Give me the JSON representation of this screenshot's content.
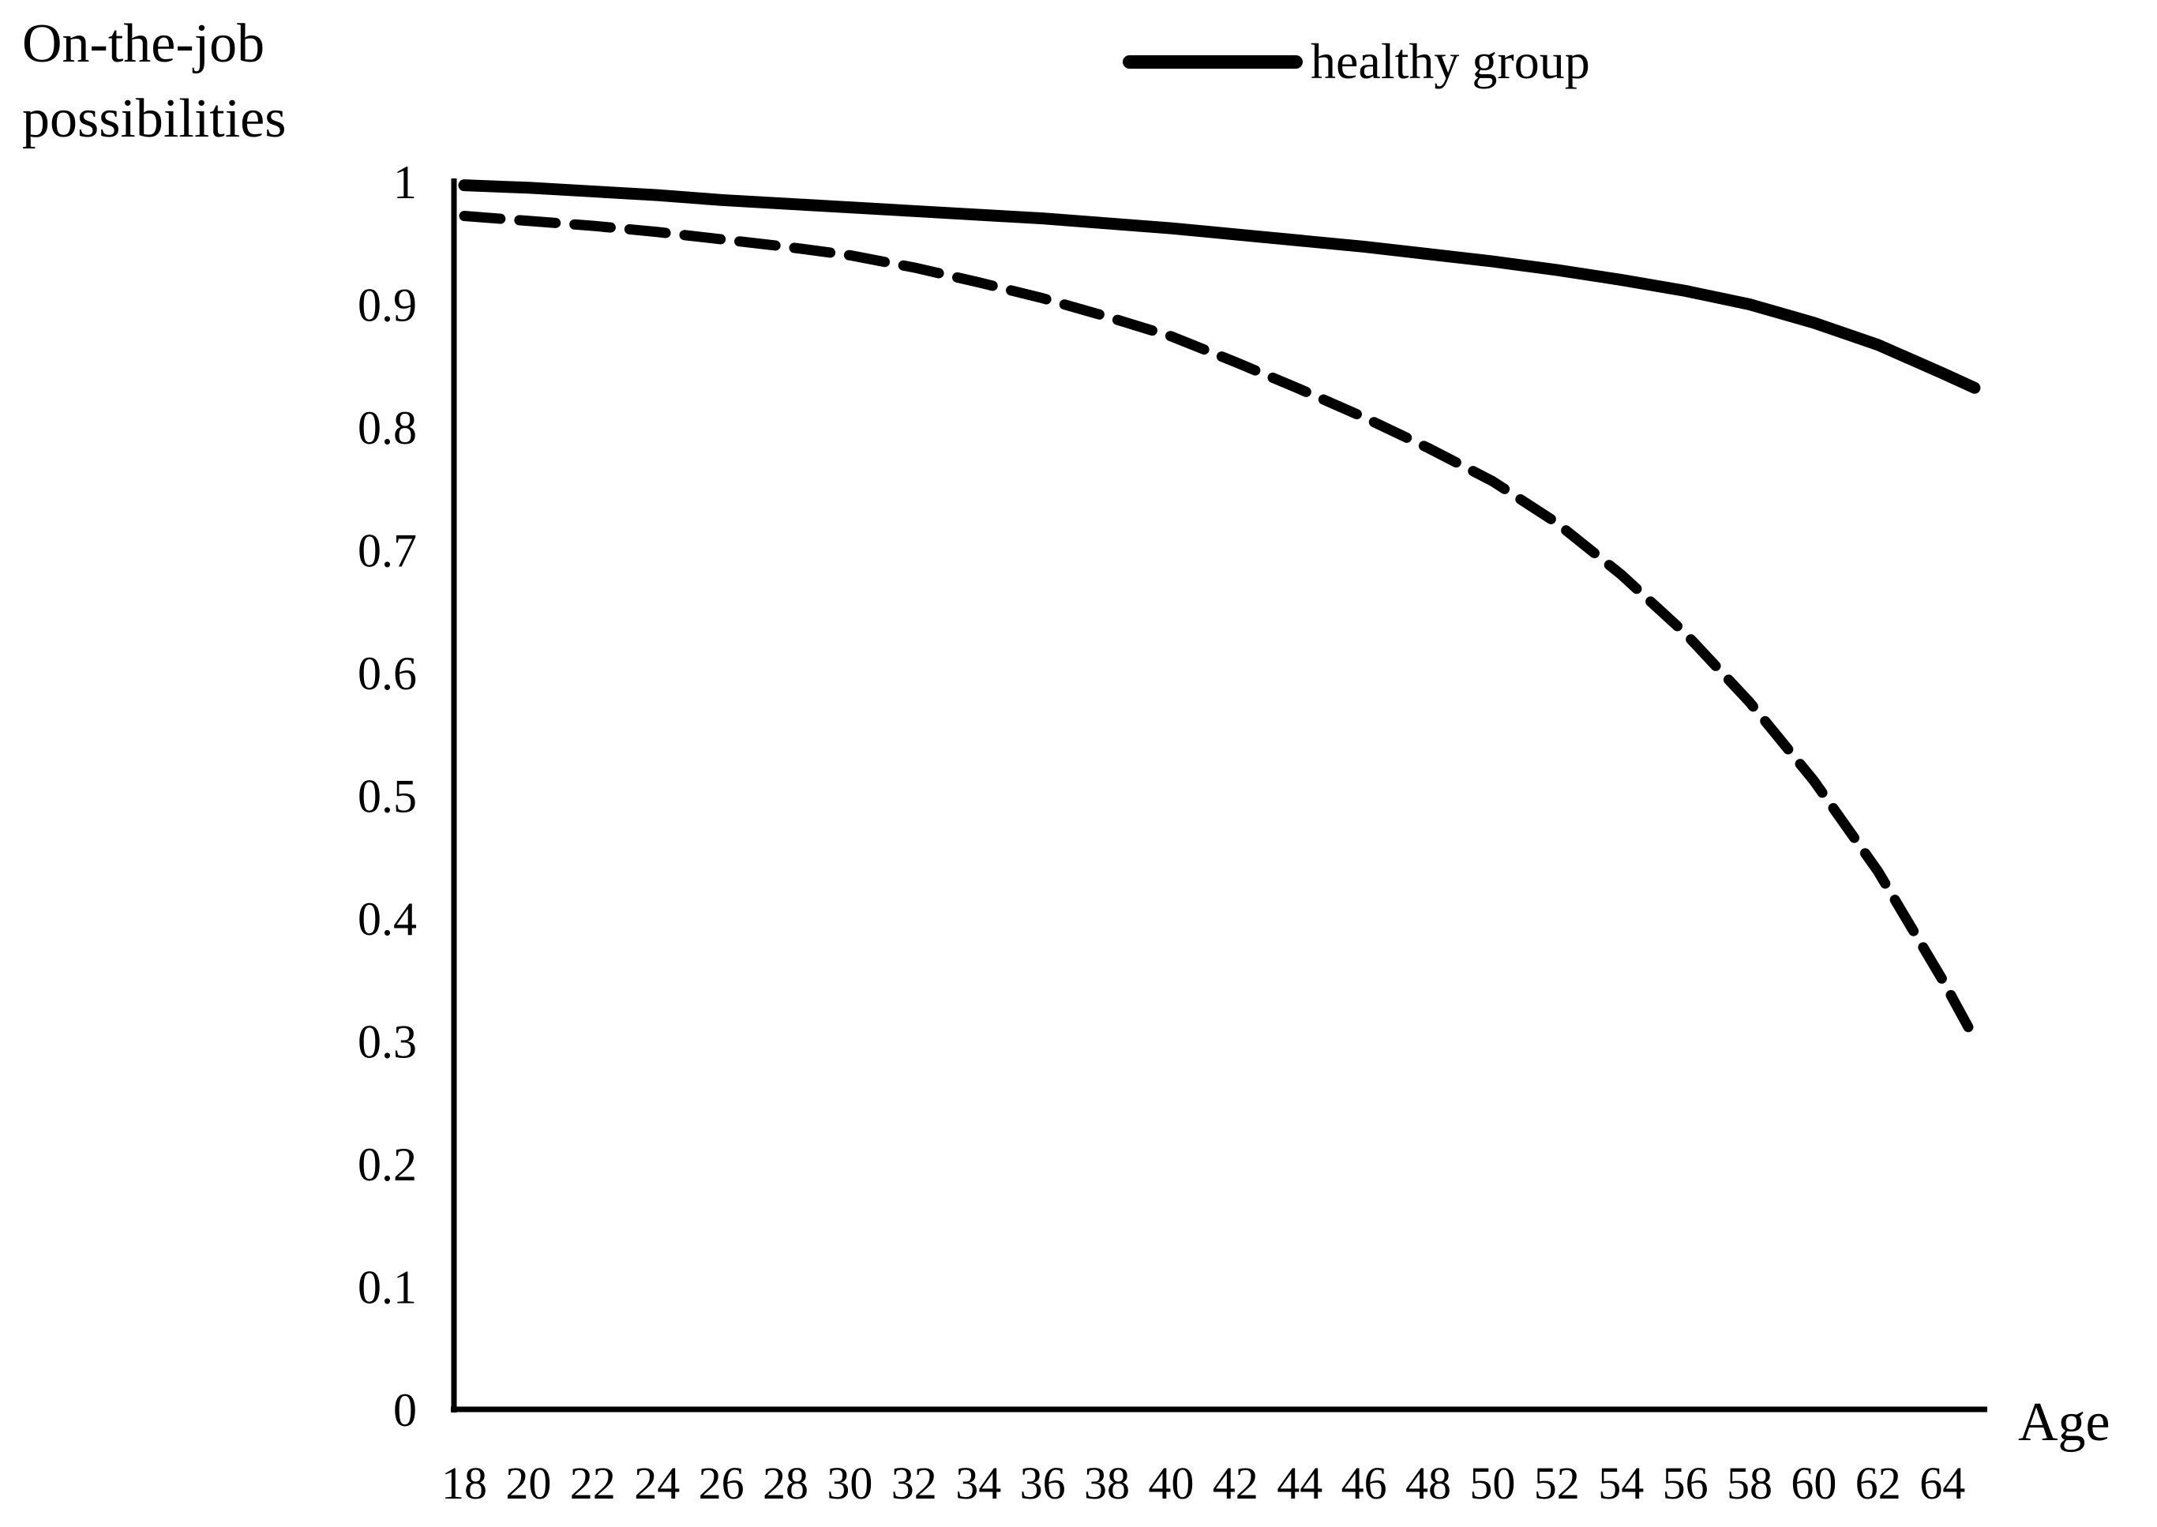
{
  "labels": {
    "y_axis_title": "On-the-job\npossibilities",
    "x_axis_title": "Age"
  },
  "legend": {
    "position": "top-center",
    "items": [
      {
        "label": "healthy group",
        "swatch": "solid-line"
      }
    ]
  },
  "chart_data": {
    "type": "line",
    "title": "",
    "xlabel": "Age",
    "ylabel": "On-the-job possibilities",
    "xlim": [
      18,
      65
    ],
    "ylim": [
      0,
      1
    ],
    "grid": false,
    "legend_position": "top-center",
    "x_tick_labels": [
      "18",
      "20",
      "22",
      "24",
      "26",
      "28",
      "30",
      "32",
      "34",
      "36",
      "38",
      "40",
      "42",
      "44",
      "46",
      "48",
      "50",
      "52",
      "54",
      "56",
      "58",
      "60",
      "62",
      "64"
    ],
    "y_tick_labels": [
      "1",
      "0.9",
      "0.8",
      "0.7",
      "0.6",
      "0.5",
      "0.4",
      "0.3",
      "0.2",
      "0.1",
      "0"
    ],
    "series": [
      {
        "name": "healthy group",
        "line_style": "solid",
        "color": "#000000",
        "in_legend": true,
        "x": [
          18,
          20,
          22,
          24,
          26,
          28,
          30,
          32,
          34,
          36,
          38,
          40,
          42,
          44,
          46,
          48,
          50,
          52,
          54,
          56,
          58,
          60,
          62,
          64,
          65
        ],
        "y": [
          0.997,
          0.995,
          0.992,
          0.989,
          0.985,
          0.982,
          0.979,
          0.976,
          0.973,
          0.97,
          0.966,
          0.962,
          0.957,
          0.952,
          0.947,
          0.941,
          0.935,
          0.928,
          0.92,
          0.911,
          0.9,
          0.885,
          0.867,
          0.844,
          0.832
        ]
      },
      {
        "name": "",
        "line_style": "dashed",
        "color": "#000000",
        "in_legend": false,
        "x": [
          18,
          20,
          22,
          24,
          26,
          28,
          30,
          32,
          34,
          36,
          38,
          40,
          42,
          44,
          46,
          48,
          50,
          52,
          54,
          56,
          58,
          60,
          62,
          64,
          65
        ],
        "y": [
          0.972,
          0.968,
          0.964,
          0.959,
          0.953,
          0.947,
          0.94,
          0.93,
          0.918,
          0.905,
          0.89,
          0.874,
          0.853,
          0.831,
          0.808,
          0.783,
          0.756,
          0.722,
          0.68,
          0.632,
          0.576,
          0.512,
          0.438,
          0.35,
          0.302
        ]
      }
    ]
  },
  "colors": {
    "foreground": "#000000",
    "background": "#ffffff"
  }
}
